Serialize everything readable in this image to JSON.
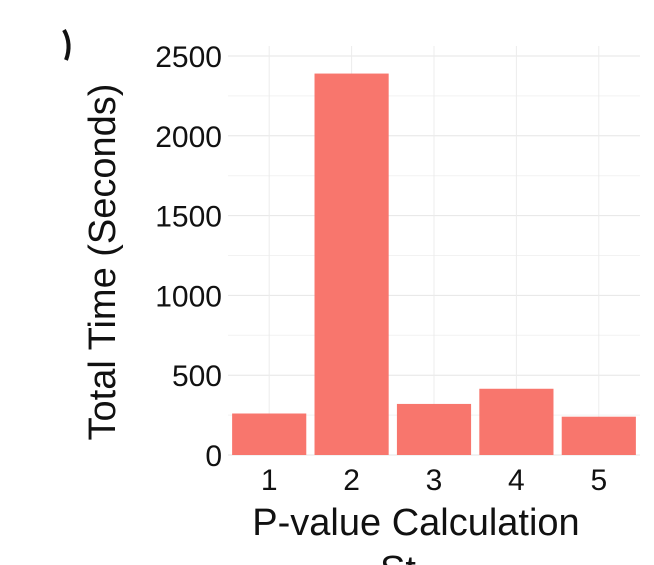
{
  "chart_data": {
    "type": "bar",
    "categories": [
      "1",
      "2",
      "3",
      "4",
      "5"
    ],
    "values": [
      260,
      2390,
      320,
      415,
      240
    ],
    "xlabel": "P-value Calculation",
    "xlabel_cut_off": "St",
    "ylabel": "Total Time (Seconds)",
    "ylim": [
      0,
      2500
    ],
    "yticks": [
      "0",
      "500",
      "1000",
      "1500",
      "2000",
      "2500"
    ],
    "bar_color": "#F8766D",
    "grid": true,
    "legend": "none"
  }
}
